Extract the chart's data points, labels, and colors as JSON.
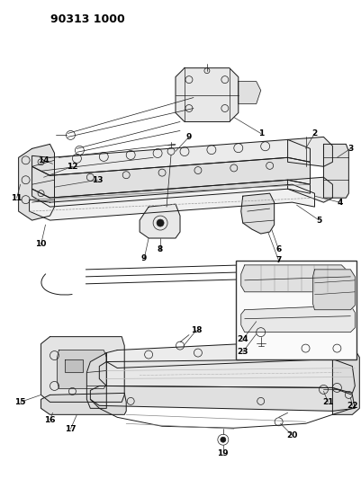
{
  "title": "90313 1000",
  "bg_color": "#ffffff",
  "fig_width": 4.02,
  "fig_height": 5.33,
  "dpi": 100,
  "line_color": "#1a1a1a",
  "label_color": "#000000",
  "label_fontsize": 6.5,
  "title_fontsize": 9
}
